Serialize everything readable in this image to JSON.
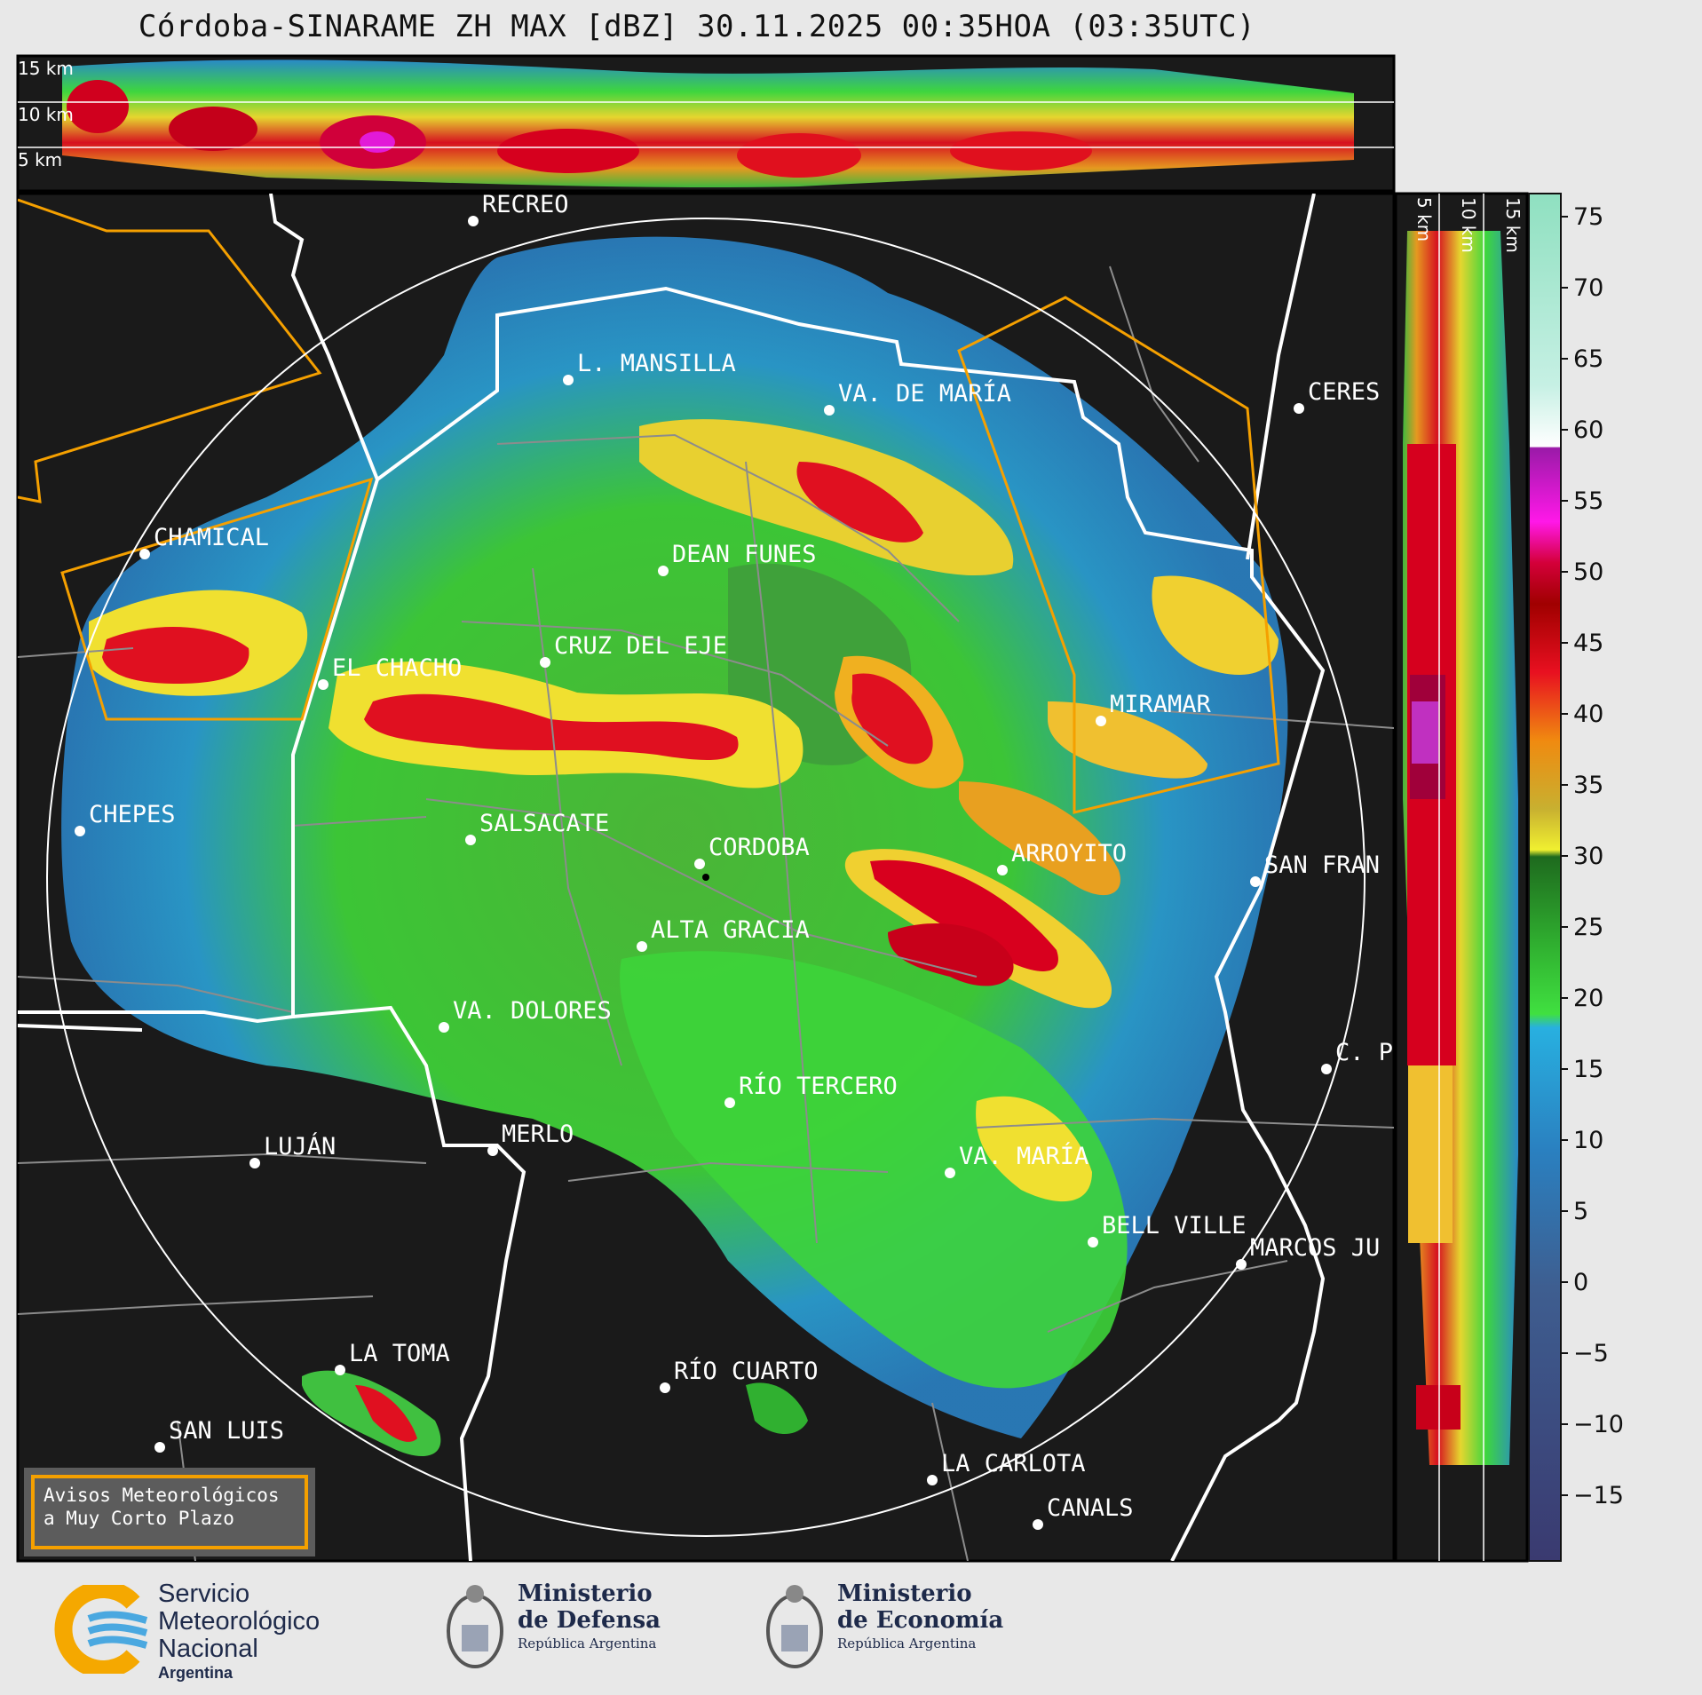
{
  "title": "Córdoba-SINARAME ZH MAX [dBZ] 30.11.2025 00:35HOA (03:35UTC)",
  "top_panel_heights": [
    "15 km",
    "10 km",
    "5 km"
  ],
  "side_panel_heights": [
    "5 km",
    "10 km",
    "15 km"
  ],
  "colorbar": {
    "unit": "dBZ",
    "ticks": [
      "75",
      "70",
      "65",
      "60",
      "55",
      "50",
      "45",
      "40",
      "35",
      "30",
      "25",
      "20",
      "15",
      "10",
      "5",
      "0",
      "−5",
      "−10",
      "−15"
    ]
  },
  "cities": [
    {
      "name": "RECREO"
    },
    {
      "name": "L. MANSILLA"
    },
    {
      "name": "VA. DE MARÍA"
    },
    {
      "name": "CERES"
    },
    {
      "name": "CHAMICAL"
    },
    {
      "name": "DEAN FUNES"
    },
    {
      "name": "CRUZ DEL EJE"
    },
    {
      "name": "EL CHACHO"
    },
    {
      "name": "MIRAMAR"
    },
    {
      "name": "CHEPES"
    },
    {
      "name": "SALSACATE"
    },
    {
      "name": "CORDOBA"
    },
    {
      "name": "ARROYITO"
    },
    {
      "name": "SAN FRAN"
    },
    {
      "name": "ALTA GRACIA"
    },
    {
      "name": "VA. DOLORES"
    },
    {
      "name": "C. P"
    },
    {
      "name": "RÍO TERCERO"
    },
    {
      "name": "LUJÁN"
    },
    {
      "name": "MERLO"
    },
    {
      "name": "VA. MARÍA"
    },
    {
      "name": "BELL VILLE"
    },
    {
      "name": "MARCOS JU"
    },
    {
      "name": "LA TOMA"
    },
    {
      "name": "RÍO CUARTO"
    },
    {
      "name": "SAN LUIS"
    },
    {
      "name": "LA CARLOTA"
    },
    {
      "name": "CANALS"
    }
  ],
  "warning_legend": {
    "line1": "Avisos Meteorológicos",
    "line2": "a Muy Corto Plazo",
    "color": "#f5a000"
  },
  "footer": {
    "smn": {
      "line1": "Servicio",
      "line2": "Meteorológico",
      "line3": "Nacional",
      "country": "Argentina"
    },
    "defensa": {
      "line1": "Ministerio",
      "line2": "de Defensa",
      "line3": "República Argentina"
    },
    "economia": {
      "line1": "Ministerio",
      "line2": "de Economía",
      "line3": "República Argentina"
    }
  },
  "colors": {
    "background_map": "#1a1a1a",
    "border_white": "#ffffff",
    "warning_orange": "#f5a000"
  }
}
